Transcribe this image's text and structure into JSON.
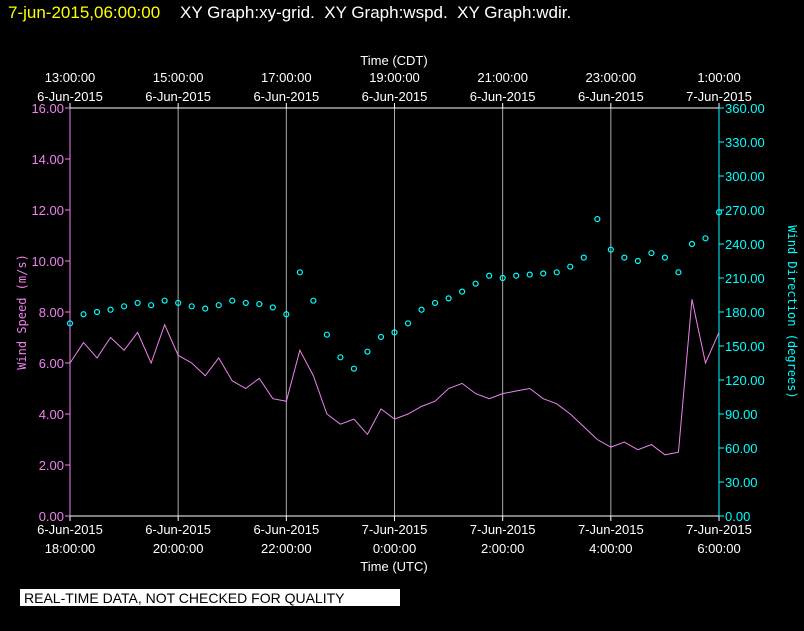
{
  "header": {
    "timestamp": "7-jun-2015,06:00:00",
    "graphs": "XY Graph:xy-grid.  XY Graph:wspd.  XY Graph:wdir."
  },
  "footer": {
    "notice": "REAL-TIME DATA, NOT CHECKED FOR QUALITY"
  },
  "chart_data": {
    "type": "line",
    "xlabel": "Time (UTC)",
    "x2label": "Time (CDT)",
    "ylabel": "Wind Speed (m/s)",
    "y2label": "Wind Direction (degrees)",
    "xlim": [
      "2015-06-06T18:00Z",
      "2015-06-07T06:00Z"
    ],
    "xticks": [
      {
        "value": "2015-06-06T18:00Z",
        "label": [
          "6-Jun-2015",
          "18:00:00"
        ]
      },
      {
        "value": "2015-06-06T20:00Z",
        "label": [
          "6-Jun-2015",
          "20:00:00"
        ]
      },
      {
        "value": "2015-06-06T22:00Z",
        "label": [
          "6-Jun-2015",
          "22:00:00"
        ]
      },
      {
        "value": "2015-06-07T00:00Z",
        "label": [
          "7-Jun-2015",
          "0:00:00"
        ]
      },
      {
        "value": "2015-06-07T02:00Z",
        "label": [
          "7-Jun-2015",
          "2:00:00"
        ]
      },
      {
        "value": "2015-06-07T04:00Z",
        "label": [
          "7-Jun-2015",
          "4:00:00"
        ]
      },
      {
        "value": "2015-06-07T06:00Z",
        "label": [
          "7-Jun-2015",
          "6:00:00"
        ]
      }
    ],
    "x2ticks": [
      {
        "value": "2015-06-06T18:00Z",
        "label": [
          "13:00:00",
          "6-Jun-2015"
        ]
      },
      {
        "value": "2015-06-06T20:00Z",
        "label": [
          "15:00:00",
          "6-Jun-2015"
        ]
      },
      {
        "value": "2015-06-06T22:00Z",
        "label": [
          "17:00:00",
          "6-Jun-2015"
        ]
      },
      {
        "value": "2015-06-07T00:00Z",
        "label": [
          "19:00:00",
          "6-Jun-2015"
        ]
      },
      {
        "value": "2015-06-07T02:00Z",
        "label": [
          "21:00:00",
          "6-Jun-2015"
        ]
      },
      {
        "value": "2015-06-07T04:00Z",
        "label": [
          "23:00:00",
          "6-Jun-2015"
        ]
      },
      {
        "value": "2015-06-07T06:00Z",
        "label": [
          "1:00:00",
          "7-Jun-2015"
        ]
      }
    ],
    "ylim": [
      0,
      16
    ],
    "yticks": [
      {
        "value": 0,
        "label": "0.00"
      },
      {
        "value": 2,
        "label": "2.00"
      },
      {
        "value": 4,
        "label": "4.00"
      },
      {
        "value": 6,
        "label": "6.00"
      },
      {
        "value": 8,
        "label": "8.00"
      },
      {
        "value": 10,
        "label": "10.00"
      },
      {
        "value": 12,
        "label": "12.00"
      },
      {
        "value": 14,
        "label": "14.00"
      },
      {
        "value": 16,
        "label": "16.00"
      }
    ],
    "y2lim": [
      0,
      360
    ],
    "y2ticks": [
      {
        "value": 0,
        "label": "0.00"
      },
      {
        "value": 30,
        "label": "30.00"
      },
      {
        "value": 60,
        "label": "60.00"
      },
      {
        "value": 90,
        "label": "90.00"
      },
      {
        "value": 120,
        "label": "120.00"
      },
      {
        "value": 150,
        "label": "150.00"
      },
      {
        "value": 180,
        "label": "180.00"
      },
      {
        "value": 210,
        "label": "210.00"
      },
      {
        "value": 240,
        "label": "240.00"
      },
      {
        "value": 270,
        "label": "270.00"
      },
      {
        "value": 300,
        "label": "300.00"
      },
      {
        "value": 330,
        "label": "330.00"
      },
      {
        "value": 360,
        "label": "360.00"
      }
    ],
    "grid": true,
    "x": [
      "2015-06-06T18:00Z",
      "2015-06-06T18:15Z",
      "2015-06-06T18:30Z",
      "2015-06-06T18:45Z",
      "2015-06-06T19:00Z",
      "2015-06-06T19:15Z",
      "2015-06-06T19:30Z",
      "2015-06-06T19:45Z",
      "2015-06-06T20:00Z",
      "2015-06-06T20:15Z",
      "2015-06-06T20:30Z",
      "2015-06-06T20:45Z",
      "2015-06-06T21:00Z",
      "2015-06-06T21:15Z",
      "2015-06-06T21:30Z",
      "2015-06-06T21:45Z",
      "2015-06-06T22:00Z",
      "2015-06-06T22:15Z",
      "2015-06-06T22:30Z",
      "2015-06-06T22:45Z",
      "2015-06-06T23:00Z",
      "2015-06-06T23:15Z",
      "2015-06-06T23:30Z",
      "2015-06-06T23:45Z",
      "2015-06-07T00:00Z",
      "2015-06-07T00:15Z",
      "2015-06-07T00:30Z",
      "2015-06-07T00:45Z",
      "2015-06-07T01:00Z",
      "2015-06-07T01:15Z",
      "2015-06-07T01:30Z",
      "2015-06-07T01:45Z",
      "2015-06-07T02:00Z",
      "2015-06-07T02:15Z",
      "2015-06-07T02:30Z",
      "2015-06-07T02:45Z",
      "2015-06-07T03:00Z",
      "2015-06-07T03:15Z",
      "2015-06-07T03:30Z",
      "2015-06-07T03:45Z",
      "2015-06-07T04:00Z",
      "2015-06-07T04:15Z",
      "2015-06-07T04:30Z",
      "2015-06-07T04:45Z",
      "2015-06-07T05:00Z",
      "2015-06-07T05:15Z",
      "2015-06-07T05:30Z",
      "2015-06-07T05:45Z",
      "2015-06-07T06:00Z"
    ],
    "series": [
      {
        "name": "wspd",
        "color": "#ee82ee",
        "style": "line",
        "values": [
          6.0,
          6.8,
          6.2,
          7.0,
          6.5,
          7.2,
          6.0,
          7.5,
          6.3,
          6.0,
          5.5,
          6.2,
          5.3,
          5.0,
          5.4,
          4.6,
          4.5,
          6.5,
          5.5,
          4.0,
          3.6,
          3.8,
          3.2,
          4.2,
          3.8,
          4.0,
          4.3,
          4.5,
          5.0,
          5.2,
          4.8,
          4.6,
          4.8,
          4.9,
          5.0,
          4.6,
          4.4,
          4.0,
          3.5,
          3.0,
          2.7,
          2.9,
          2.6,
          2.8,
          2.4,
          2.5,
          8.5,
          6.0,
          7.2
        ]
      },
      {
        "name": "wdir",
        "color": "#00ffff",
        "style": "circles",
        "axis": "y2",
        "values": [
          170,
          178,
          180,
          182,
          185,
          188,
          186,
          190,
          188,
          185,
          183,
          186,
          190,
          188,
          187,
          184,
          178,
          215,
          190,
          160,
          140,
          130,
          145,
          158,
          162,
          170,
          182,
          188,
          192,
          198,
          205,
          212,
          210,
          212,
          213,
          214,
          215,
          220,
          228,
          262,
          235,
          228,
          225,
          232,
          228,
          215,
          240,
          245,
          268
        ]
      }
    ]
  }
}
